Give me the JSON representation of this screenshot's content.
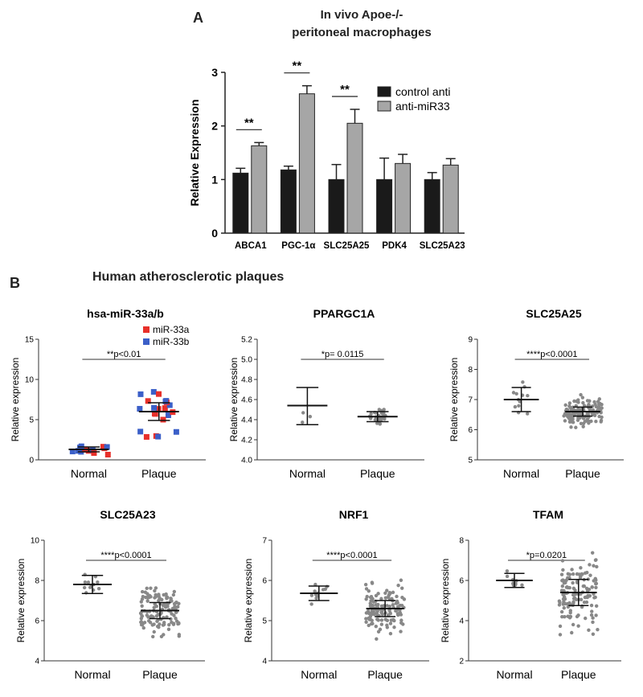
{
  "figure": {
    "panel_a_letter": "A",
    "panel_a_title_line1": "In vivo Apoe-/-",
    "panel_a_title_line2": "peritoneal macrophages",
    "panel_b_letter": "B",
    "panel_b_title": "Human atherosclerotic plaques"
  },
  "colors": {
    "control": "#1a1a1a",
    "treated": "#a6a6a6",
    "mir33a": "#e8302a",
    "mir33b": "#3b5fc8",
    "points": "#888888"
  },
  "chart_data": [
    {
      "id": "A",
      "type": "bar",
      "title": "In vivo Apoe-/- peritoneal macrophages",
      "ylabel": "Relative Expression",
      "xlabel": "",
      "ylim": [
        0,
        3
      ],
      "yticks": [
        0,
        1,
        2,
        3
      ],
      "categories": [
        "ABCA1",
        "PGC-1α",
        "SLC25A25",
        "PDK4",
        "SLC25A23"
      ],
      "series": [
        {
          "name": "control anti",
          "values": [
            1.12,
            1.18,
            1.0,
            1.0,
            1.0
          ],
          "errors": [
            0.09,
            0.07,
            0.28,
            0.4,
            0.13
          ],
          "color": "#1a1a1a"
        },
        {
          "name": "anti-miR33",
          "values": [
            1.63,
            2.6,
            2.05,
            1.3,
            1.27
          ],
          "errors": [
            0.06,
            0.15,
            0.26,
            0.17,
            0.12
          ],
          "color": "#a6a6a6"
        }
      ],
      "significance": [
        {
          "category": "ABCA1",
          "label": "**"
        },
        {
          "category": "PGC-1α",
          "label": "**"
        },
        {
          "category": "SLC25A25",
          "label": "**"
        }
      ],
      "legend_position": "top-right",
      "grid": false
    },
    {
      "id": "B1",
      "type": "scatter",
      "title": "hsa-miR-33a/b",
      "ylabel": "Relative expression",
      "categories": [
        "Normal",
        "Plaque"
      ],
      "ylim": [
        0,
        15
      ],
      "yticks": [
        0,
        5,
        10,
        15
      ],
      "annotation": "**p<0.01",
      "legend": [
        "miR-33a",
        "miR-33b"
      ],
      "legend_position": "top-right",
      "groups": [
        {
          "name": "Normal",
          "mean": 1.3,
          "sd_low": 1.0,
          "sd_high": 1.6,
          "n": 14
        },
        {
          "name": "Plaque",
          "mean": 6.0,
          "sd_low": 4.9,
          "sd_high": 7.1,
          "n": 22
        }
      ]
    },
    {
      "id": "B2",
      "type": "scatter",
      "title": "PPARGC1A",
      "ylabel": "Relative expression",
      "categories": [
        "Normal",
        "Plaque"
      ],
      "ylim": [
        4.0,
        5.2
      ],
      "yticks": [
        4.0,
        4.2,
        4.4,
        4.6,
        4.8,
        5.0,
        5.2
      ],
      "annotation": "*p= 0.0115",
      "groups": [
        {
          "name": "Normal",
          "mean": 4.54,
          "sd_low": 4.35,
          "sd_high": 4.72,
          "n": 3
        },
        {
          "name": "Plaque",
          "mean": 4.43,
          "sd_low": 4.38,
          "sd_high": 4.48,
          "n": 40
        }
      ]
    },
    {
      "id": "B3",
      "type": "scatter",
      "title": "SLC25A25",
      "ylabel": "Relative expression",
      "categories": [
        "Normal",
        "Plaque"
      ],
      "ylim": [
        5,
        9
      ],
      "yticks": [
        5,
        6,
        7,
        8,
        9
      ],
      "annotation": "****p<0.0001",
      "groups": [
        {
          "name": "Normal",
          "mean": 7.0,
          "sd_low": 6.6,
          "sd_high": 7.4,
          "n": 12
        },
        {
          "name": "Plaque",
          "mean": 6.6,
          "sd_low": 6.45,
          "sd_high": 6.75,
          "n": 130
        }
      ]
    },
    {
      "id": "B4",
      "type": "scatter",
      "title": "SLC25A23",
      "ylabel": "Relative expression",
      "categories": [
        "Normal",
        "Plaque"
      ],
      "ylim": [
        4,
        10
      ],
      "yticks": [
        4,
        6,
        8,
        10
      ],
      "annotation": "****p<0.0001",
      "groups": [
        {
          "name": "Normal",
          "mean": 7.8,
          "sd_low": 7.35,
          "sd_high": 8.25,
          "n": 12
        },
        {
          "name": "Plaque",
          "mean": 6.5,
          "sd_low": 6.1,
          "sd_high": 6.9,
          "n": 130
        }
      ]
    },
    {
      "id": "B5",
      "type": "scatter",
      "title": "NRF1",
      "ylabel": "Relative expression",
      "categories": [
        "Normal",
        "Plaque"
      ],
      "ylim": [
        4,
        7
      ],
      "yticks": [
        4,
        5,
        6,
        7
      ],
      "annotation": "****p<0.0001",
      "groups": [
        {
          "name": "Normal",
          "mean": 5.68,
          "sd_low": 5.5,
          "sd_high": 5.86,
          "n": 12
        },
        {
          "name": "Plaque",
          "mean": 5.3,
          "sd_low": 5.1,
          "sd_high": 5.5,
          "n": 130
        }
      ]
    },
    {
      "id": "B6",
      "type": "scatter",
      "title": "TFAM",
      "ylabel": "Relative expression",
      "categories": [
        "Normal",
        "Plaque"
      ],
      "ylim": [
        2,
        8
      ],
      "yticks": [
        2,
        4,
        6,
        8
      ],
      "annotation": "*p=0.0201",
      "groups": [
        {
          "name": "Normal",
          "mean": 6.0,
          "sd_low": 5.65,
          "sd_high": 6.35,
          "n": 12
        },
        {
          "name": "Plaque",
          "mean": 5.4,
          "sd_low": 4.75,
          "sd_high": 6.05,
          "n": 130
        }
      ]
    }
  ]
}
